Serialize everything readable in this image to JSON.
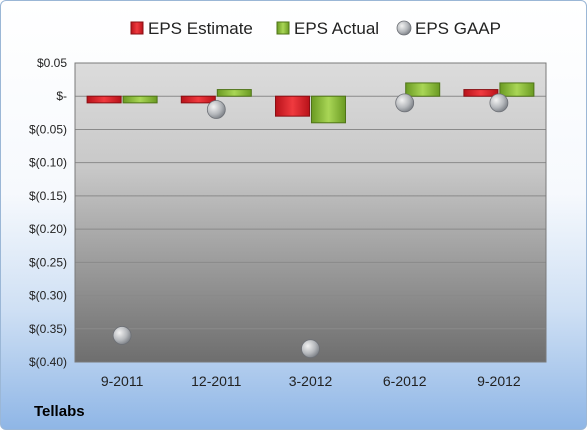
{
  "company": "Tellabs",
  "chart_data": {
    "type": "bar",
    "categories": [
      "9-2011",
      "12-2011",
      "3-2012",
      "6-2012",
      "9-2012"
    ],
    "series": [
      {
        "name": "EPS Estimate",
        "kind": "bar",
        "color": "#e0202a",
        "values": [
          -0.01,
          -0.01,
          -0.03,
          0.0,
          0.01
        ]
      },
      {
        "name": "EPS Actual",
        "kind": "bar",
        "color": "#8fc23a",
        "values": [
          -0.01,
          0.01,
          -0.04,
          0.02,
          0.02
        ]
      },
      {
        "name": "EPS GAAP",
        "kind": "scatter",
        "color": "#b0b4ba",
        "values": [
          -0.36,
          -0.02,
          -0.38,
          -0.01,
          -0.01
        ]
      }
    ],
    "ylim": [
      -0.4,
      0.05
    ],
    "yticks": [
      0.05,
      0.0,
      -0.05,
      -0.1,
      -0.15,
      -0.2,
      -0.25,
      -0.3,
      -0.35,
      -0.4
    ],
    "ytick_labels": [
      "$0.05",
      "$-",
      "$(0.05)",
      "$(0.10)",
      "$(0.15)",
      "$(0.20)",
      "$(0.25)",
      "$(0.30)",
      "$(0.35)",
      "$(0.40)"
    ],
    "grid": true,
    "legend": "top"
  }
}
